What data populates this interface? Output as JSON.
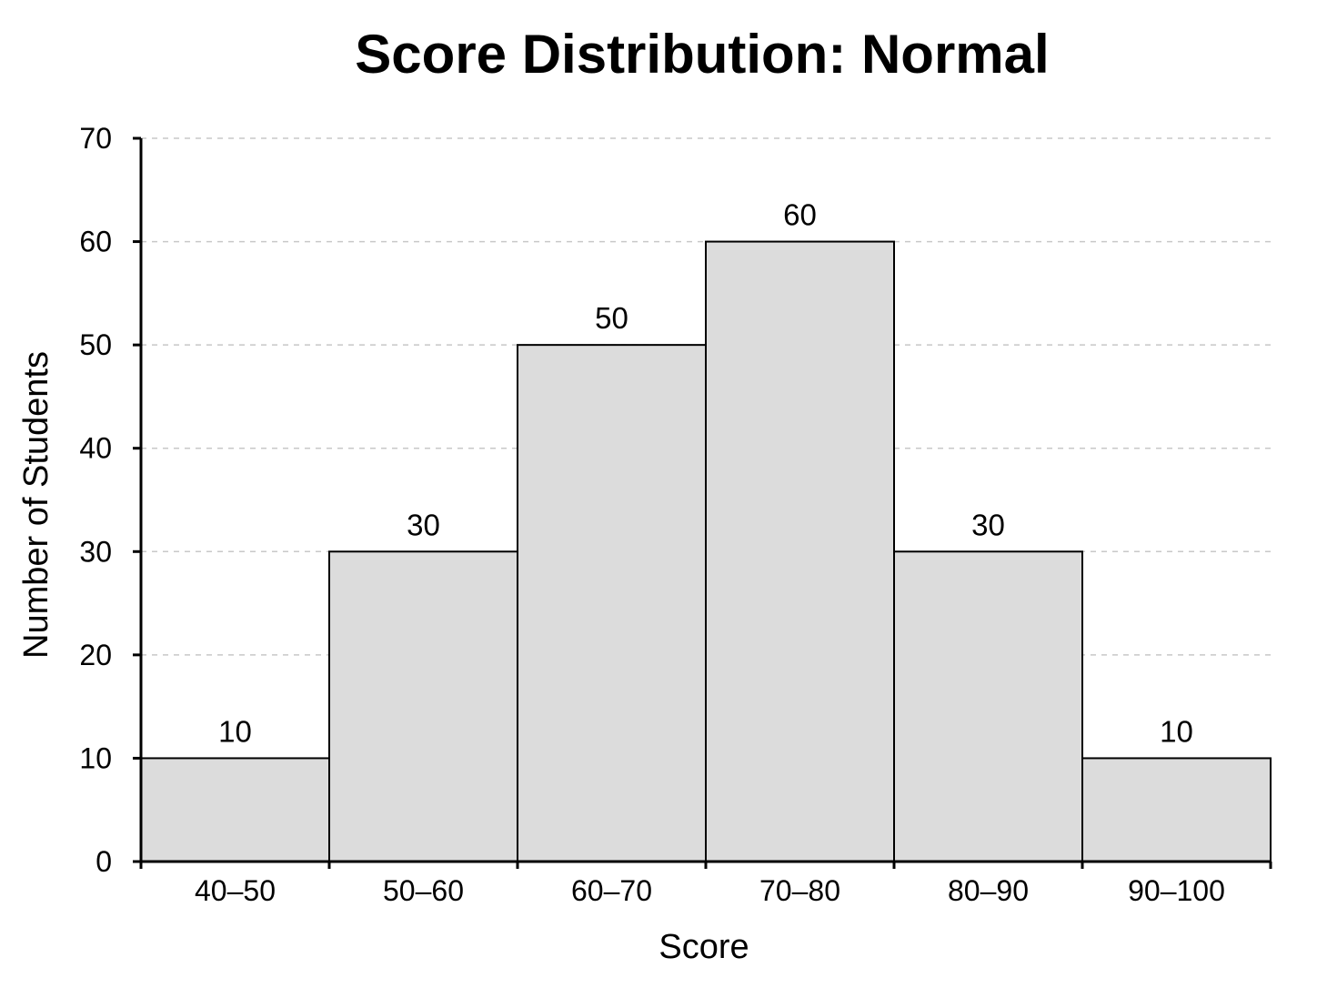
{
  "chart_data": {
    "type": "bar",
    "title": "Score Distribution: Normal",
    "xlabel": "Score",
    "ylabel": "Number of Students",
    "categories": [
      "40–50",
      "50–60",
      "60–70",
      "70–80",
      "80–90",
      "90–100"
    ],
    "values": [
      10,
      30,
      50,
      60,
      30,
      10
    ],
    "ylim": [
      0,
      70
    ],
    "yticks": [
      0,
      10,
      20,
      30,
      40,
      50,
      60,
      70
    ],
    "grid": true,
    "legend": "none",
    "colors": {
      "bar_fill": "#dcdcdc",
      "bar_edge": "#000000",
      "grid": "#c8c8c8"
    }
  }
}
